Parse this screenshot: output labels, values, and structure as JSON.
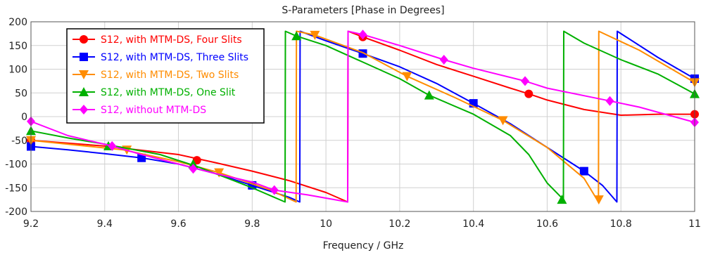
{
  "chart_data": {
    "type": "line",
    "title": "S-Parameters [Phase in Degrees]",
    "xlabel": "Frequency / GHz",
    "ylabel": "",
    "xlim": [
      9.2,
      11.0
    ],
    "ylim": [
      -200,
      200
    ],
    "xticks": [
      "9.2",
      "9.4",
      "9.6",
      "9.8",
      "10",
      "10.2",
      "10.4",
      "10.6",
      "10.8",
      "11"
    ],
    "yticks": [
      "200",
      "150",
      "100",
      "50",
      "0",
      "-50",
      "-100",
      "-150",
      "-200"
    ],
    "grid": true,
    "legend_position": "top-left",
    "series": [
      {
        "name": "S12, with MTM-DS, Four Slits",
        "color": "#ff0000",
        "marker": "circle",
        "x": [
          9.2,
          9.4,
          9.6,
          9.7,
          9.8,
          9.9,
          10.0,
          10.059,
          10.06,
          10.1,
          10.2,
          10.3,
          10.4,
          10.5,
          10.55,
          10.6,
          10.7,
          10.8,
          10.9,
          11.0
        ],
        "y": [
          -50,
          -62,
          -80,
          -97,
          -115,
          -135,
          -160,
          -180,
          180,
          168,
          140,
          110,
          85,
          60,
          48,
          35,
          15,
          3,
          5,
          5
        ],
        "markers_x": [
          9.2,
          9.65,
          10.1,
          10.55,
          11.0
        ],
        "markers_y": [
          -50,
          -92,
          168,
          48,
          5
        ]
      },
      {
        "name": "S12, with MTM-DS, Three Slits",
        "color": "#0000ff",
        "marker": "square",
        "x": [
          9.2,
          9.3,
          9.4,
          9.5,
          9.6,
          9.7,
          9.8,
          9.9,
          9.929,
          9.93,
          10.0,
          10.1,
          10.2,
          10.3,
          10.4,
          10.5,
          10.6,
          10.7,
          10.75,
          10.789,
          10.79,
          10.9,
          11.0
        ],
        "y": [
          -63,
          -70,
          -78,
          -87,
          -100,
          -120,
          -145,
          -170,
          -180,
          180,
          160,
          133,
          105,
          70,
          28,
          -15,
          -65,
          -115,
          -145,
          -180,
          180,
          125,
          80
        ],
        "markers_x": [
          9.2,
          9.5,
          9.8,
          10.1,
          10.4,
          10.7,
          11.0
        ],
        "markers_y": [
          -63,
          -87,
          -145,
          133,
          28,
          -115,
          80
        ]
      },
      {
        "name": "S12, with MTM-DS, Two Slits",
        "color": "#ff8c00",
        "marker": "triangle-down",
        "x": [
          9.2,
          9.3,
          9.45,
          9.6,
          9.71,
          9.85,
          9.919,
          9.92,
          9.97,
          10.1,
          10.22,
          10.35,
          10.48,
          10.6,
          10.7,
          10.739,
          10.74,
          10.85,
          11.0
        ],
        "y": [
          -50,
          -58,
          -70,
          -95,
          -118,
          -155,
          -180,
          180,
          172,
          135,
          85,
          40,
          -8,
          -65,
          -130,
          -180,
          180,
          140,
          72
        ],
        "markers_x": [
          9.2,
          9.46,
          9.71,
          9.97,
          10.22,
          10.48,
          10.74,
          11.0
        ],
        "markers_y": [
          -50,
          -70,
          -118,
          172,
          85,
          -8,
          -175,
          72
        ]
      },
      {
        "name": "S12, with MTM-DS, One Slit",
        "color": "#00b000",
        "marker": "triangle-up",
        "x": [
          9.2,
          9.3,
          9.4,
          9.55,
          9.65,
          9.75,
          9.8,
          9.889,
          9.89,
          9.92,
          10.0,
          10.1,
          10.2,
          10.28,
          10.4,
          10.5,
          10.55,
          10.6,
          10.644,
          10.645,
          10.7,
          10.8,
          10.9,
          11.0
        ],
        "y": [
          -30,
          -45,
          -58,
          -80,
          -105,
          -135,
          -150,
          -180,
          180,
          170,
          150,
          115,
          80,
          45,
          5,
          -40,
          -80,
          -140,
          -175,
          180,
          155,
          120,
          90,
          48
        ],
        "markers_x": [
          9.2,
          9.41,
          9.64,
          9.92,
          10.28,
          10.64,
          11.0
        ],
        "markers_y": [
          -30,
          -62,
          -100,
          170,
          45,
          -175,
          48
        ]
      },
      {
        "name": "S12, without MTM-DS",
        "color": "#ff00ff",
        "marker": "diamond",
        "x": [
          9.2,
          9.3,
          9.42,
          9.5,
          9.6,
          9.7,
          9.8,
          9.86,
          9.95,
          10.059,
          10.06,
          10.1,
          10.2,
          10.32,
          10.4,
          10.54,
          10.6,
          10.77,
          10.85,
          11.0
        ],
        "y": [
          -10,
          -40,
          -62,
          -80,
          -100,
          -120,
          -138,
          -155,
          -165,
          -180,
          180,
          173,
          150,
          120,
          102,
          75,
          60,
          33,
          20,
          -12
        ],
        "markers_x": [
          9.2,
          9.42,
          9.64,
          9.86,
          10.1,
          10.32,
          10.54,
          10.77,
          11.0
        ],
        "markers_y": [
          -10,
          -62,
          -110,
          -155,
          173,
          120,
          75,
          33,
          -12
        ]
      }
    ]
  }
}
